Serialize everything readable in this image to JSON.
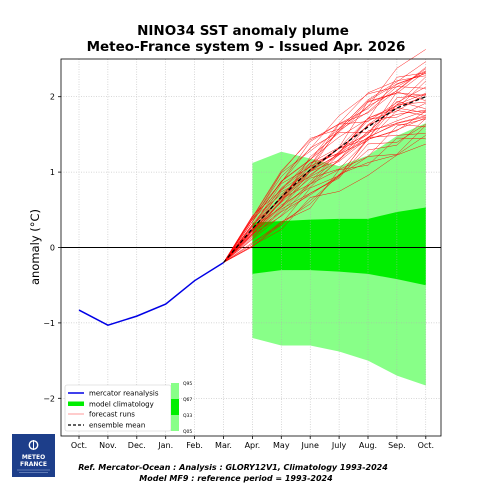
{
  "chart_data": {
    "type": "line",
    "title": "NINO34 SST anomaly plume",
    "subtitle": "Meteo-France system 9 - Issued Apr. 2026",
    "ylabel": "anomaly (°C)",
    "xlabel": "",
    "categories": [
      "Oct.",
      "Nov.",
      "Dec.",
      "Jan.",
      "Feb.",
      "Mar.",
      "Apr.",
      "May",
      "June",
      "July",
      "Aug.",
      "Sep.",
      "Oct."
    ],
    "yticks": [
      -2,
      -1,
      0,
      1,
      2
    ],
    "ytick_labels": [
      "−2",
      "−1",
      "0",
      "1",
      "2"
    ],
    "ylim": [
      -2.5,
      2.5
    ],
    "grid": true,
    "legend_position": "bottom-left",
    "colors": {
      "reanalysis": "#0000e6",
      "climatology_inner": "#00ee00",
      "climatology_outer": "#88ff88",
      "forecast_runs": "#ff0000",
      "ensemble_mean": "#000000"
    },
    "series": [
      {
        "name": "mercator reanalysis",
        "x": [
          "Oct.",
          "Nov.",
          "Dec.",
          "Jan.",
          "Feb.",
          "Mar."
        ],
        "values": [
          -0.83,
          -1.03,
          -0.91,
          -0.75,
          -0.44,
          -0.2
        ]
      },
      {
        "name": "ensemble mean",
        "x": [
          "Mar.",
          "Apr.",
          "May",
          "June",
          "July",
          "Aug.",
          "Sep.",
          "Oct."
        ],
        "values": [
          -0.2,
          0.25,
          0.67,
          1.03,
          1.32,
          1.6,
          1.85,
          2.0
        ]
      }
    ],
    "forecast_runs": {
      "name": "forecast runs",
      "x": [
        "Mar.",
        "Apr.",
        "May",
        "June",
        "July",
        "Aug.",
        "Sep.",
        "Oct."
      ],
      "members": 40,
      "spread": [
        0,
        0.22,
        0.32,
        0.4,
        0.45,
        0.5,
        0.55,
        0.6
      ]
    },
    "model_climatology": {
      "name": "model climatology",
      "x": [
        "Apr.",
        "May",
        "June",
        "July",
        "Aug.",
        "Sep.",
        "Oct."
      ],
      "q05": [
        -1.2,
        -1.3,
        -1.3,
        -1.38,
        -1.5,
        -1.7,
        -1.83
      ],
      "q33": [
        -0.35,
        -0.3,
        -0.3,
        -0.32,
        -0.35,
        -0.42,
        -0.5
      ],
      "q67": [
        0.33,
        0.35,
        0.37,
        0.38,
        0.38,
        0.47,
        0.53
      ],
      "q95": [
        1.12,
        1.27,
        1.18,
        1.08,
        1.22,
        1.48,
        1.65
      ]
    },
    "legend": [
      "mercator reanalysis",
      "model climatology",
      "forecast runs",
      "ensemble mean"
    ],
    "quantile_labels": [
      "Q95",
      "Q67",
      "Q33",
      "Q05"
    ]
  },
  "logo": {
    "line1": "METEO",
    "line2": "FRANCE"
  },
  "footer": {
    "line1": "Ref. Mercator-Ocean :  Analysis : GLORY12V1, Climatology 1993-2024",
    "line2": "Model MF9 : reference period = 1993-2024"
  }
}
